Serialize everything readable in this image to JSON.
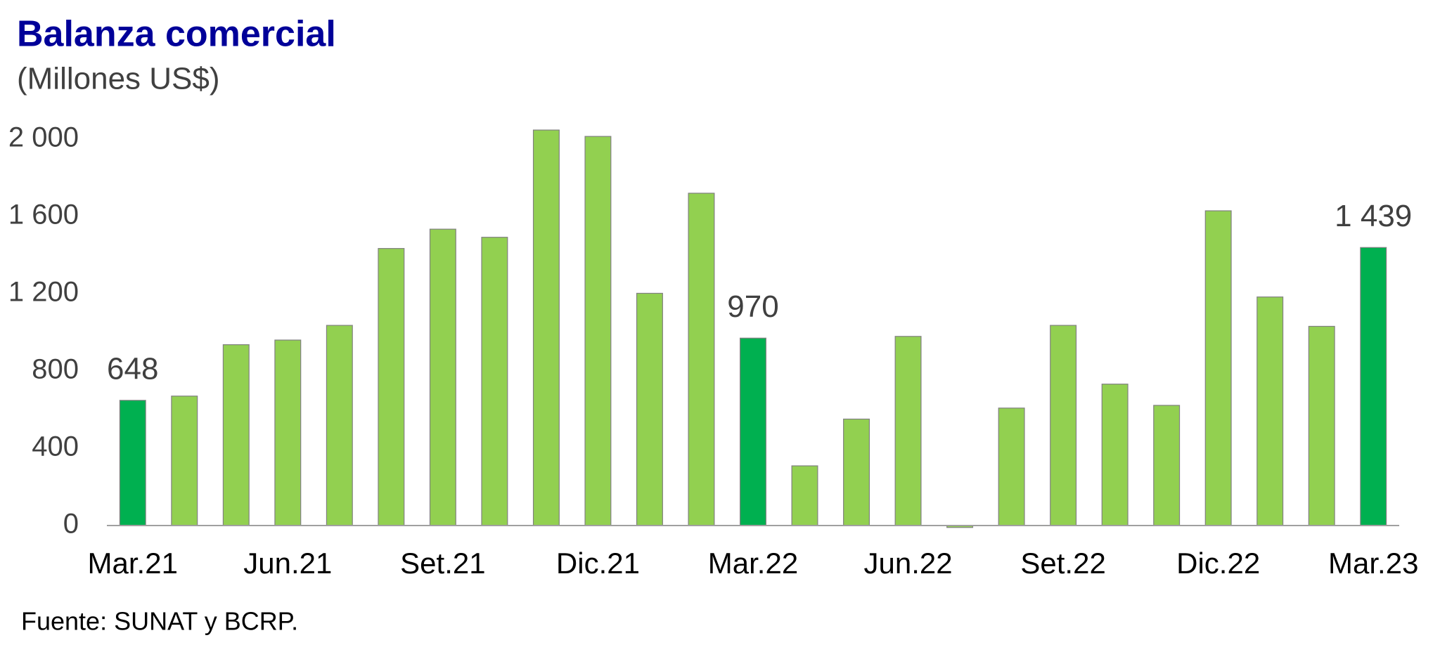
{
  "chart_data": {
    "type": "bar",
    "title": "Balanza comercial",
    "subtitle": "(Millones US$)",
    "source": "Fuente: SUNAT y BCRP.",
    "categories": [
      "Mar.21",
      null,
      null,
      "Jun.21",
      null,
      null,
      "Set.21",
      null,
      null,
      "Dic.21",
      null,
      null,
      "Mar.22",
      null,
      null,
      "Jun.22",
      null,
      null,
      "Set.22",
      null,
      null,
      "Dic.22",
      null,
      null,
      "Mar.23"
    ],
    "values": [
      648,
      670,
      936,
      960,
      1036,
      1434,
      1534,
      1492,
      2047,
      2014,
      1202,
      1720,
      970,
      309,
      551,
      979,
      -10,
      608,
      1036,
      732,
      622,
      1629,
      1183,
      1031,
      1439
    ],
    "value_labels": [
      "648",
      null,
      null,
      null,
      null,
      null,
      null,
      null,
      null,
      null,
      null,
      null,
      "970",
      null,
      null,
      null,
      null,
      null,
      null,
      null,
      null,
      null,
      null,
      null,
      "1 439"
    ],
    "colors": [
      "#00b050",
      "#92d050",
      "#92d050",
      "#92d050",
      "#92d050",
      "#92d050",
      "#92d050",
      "#92d050",
      "#92d050",
      "#92d050",
      "#92d050",
      "#92d050",
      "#00b050",
      "#92d050",
      "#92d050",
      "#92d050",
      "#92d050",
      "#92d050",
      "#92d050",
      "#92d050",
      "#92d050",
      "#92d050",
      "#92d050",
      "#92d050",
      "#00b050"
    ],
    "ylim": [
      0,
      2000
    ],
    "yticks": [
      0,
      400,
      800,
      {
        "value": 1200,
        "label": "1 200"
      },
      {
        "value": 1600,
        "label": "1 600"
      },
      {
        "value": 2000,
        "label": "2 000"
      }
    ],
    "grid": false
  }
}
